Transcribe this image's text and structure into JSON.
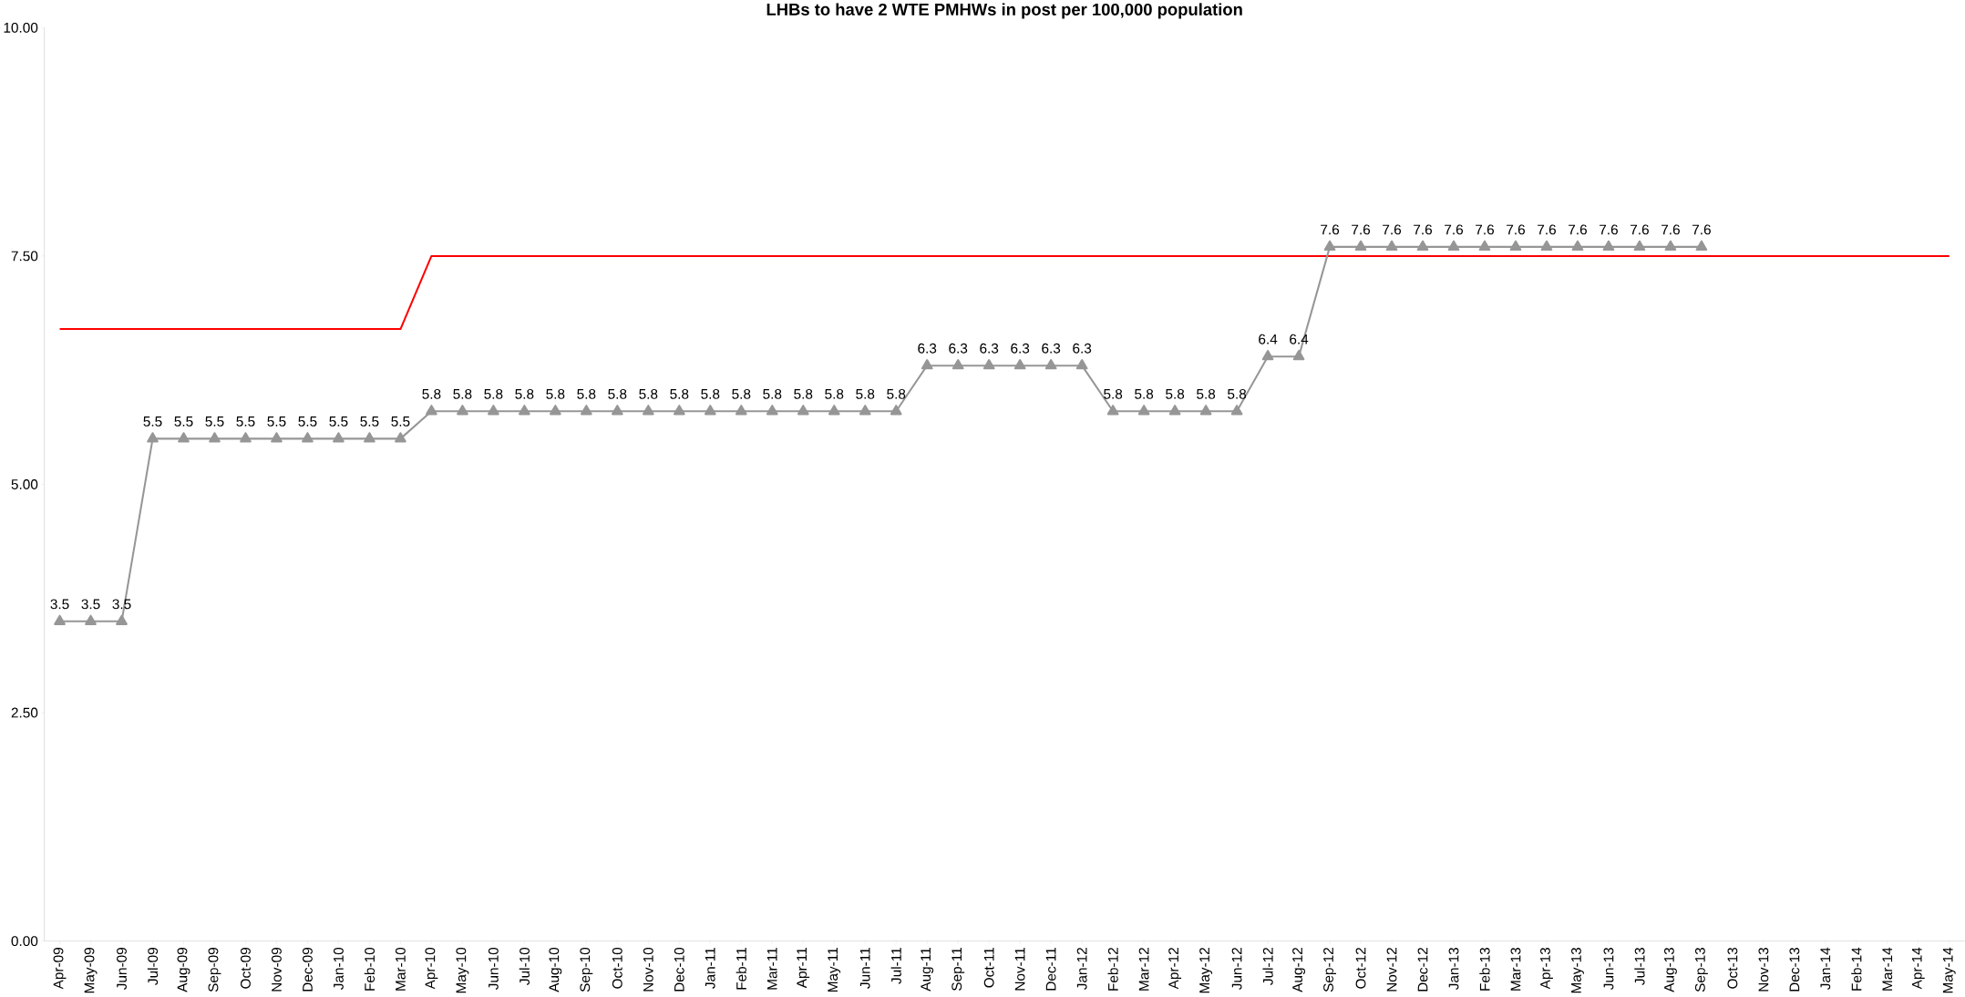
{
  "chart_data": {
    "type": "line",
    "title": "LHBs to have 2 WTE PMHWs in post per 100,000 population",
    "categories": [
      "Apr-09",
      "May-09",
      "Jun-09",
      "Jul-09",
      "Aug-09",
      "Sep-09",
      "Oct-09",
      "Nov-09",
      "Dec-09",
      "Jan-10",
      "Feb-10",
      "Mar-10",
      "Apr-10",
      "May-10",
      "Jun-10",
      "Jul-10",
      "Aug-10",
      "Sep-10",
      "Oct-10",
      "Nov-10",
      "Dec-10",
      "Jan-11",
      "Feb-11",
      "Mar-11",
      "Apr-11",
      "May-11",
      "Jun-11",
      "Jul-11",
      "Aug-11",
      "Sep-11",
      "Oct-11",
      "Nov-11",
      "Dec-11",
      "Jan-12",
      "Feb-12",
      "Mar-12",
      "Apr-12",
      "May-12",
      "Jun-12",
      "Jul-12",
      "Aug-12",
      "Sep-12",
      "Oct-12",
      "Nov-12",
      "Dec-12",
      "Jan-13",
      "Feb-13",
      "Mar-13",
      "Apr-13",
      "May-13",
      "Jun-13",
      "Jul-13",
      "Aug-13",
      "Sep-13",
      "Oct-13",
      "Nov-13",
      "Dec-13",
      "Jan-14",
      "Feb-14",
      "Mar-14",
      "Apr-14",
      "May-14"
    ],
    "series": [
      {
        "color": "#ff0000",
        "marker": "none",
        "values": [
          6.7,
          6.7,
          6.7,
          6.7,
          6.7,
          6.7,
          6.7,
          6.7,
          6.7,
          6.7,
          6.7,
          6.7,
          7.5,
          7.5,
          7.5,
          7.5,
          7.5,
          7.5,
          7.5,
          7.5,
          7.5,
          7.5,
          7.5,
          7.5,
          7.5,
          7.5,
          7.5,
          7.5,
          7.5,
          7.5,
          7.5,
          7.5,
          7.5,
          7.5,
          7.5,
          7.5,
          7.5,
          7.5,
          7.5,
          7.5,
          7.5,
          7.5,
          7.5,
          7.5,
          7.5,
          7.5,
          7.5,
          7.5,
          7.5,
          7.5,
          7.5,
          7.5,
          7.5,
          7.5,
          7.5,
          7.5,
          7.5,
          7.5,
          7.5,
          7.5,
          7.5,
          7.5
        ]
      },
      {
        "color": "#969696",
        "marker": "triangle",
        "values": [
          3.5,
          3.5,
          3.5,
          5.5,
          5.5,
          5.5,
          5.5,
          5.5,
          5.5,
          5.5,
          5.5,
          5.5,
          5.8,
          5.8,
          5.8,
          5.8,
          5.8,
          5.8,
          5.8,
          5.8,
          5.8,
          5.8,
          5.8,
          5.8,
          5.8,
          5.8,
          5.8,
          5.8,
          6.3,
          6.3,
          6.3,
          6.3,
          6.3,
          6.3,
          5.8,
          5.8,
          5.8,
          5.8,
          5.8,
          6.4,
          6.4,
          7.6,
          7.6,
          7.6,
          7.6,
          7.6,
          7.6,
          7.6,
          7.6,
          7.6,
          7.6,
          7.6,
          7.6,
          7.6,
          null,
          null,
          null,
          null,
          null,
          null,
          null,
          null
        ],
        "value_labels": [
          "3.5",
          "3.5",
          "3.5",
          "5.5",
          "5.5",
          "5.5",
          "5.5",
          "5.5",
          "5.5",
          "5.5",
          "5.5",
          "5.5",
          "5.8",
          "5.8",
          "5.8",
          "5.8",
          "5.8",
          "5.8",
          "5.8",
          "5.8",
          "5.8",
          "5.8",
          "5.8",
          "5.8",
          "5.8",
          "5.8",
          "5.8",
          "5.8",
          "6.3",
          "6.3",
          "6.3",
          "6.3",
          "6.3",
          "6.3",
          "5.8",
          "5.8",
          "5.8",
          "5.8",
          "5.8",
          "6.4",
          "6.4",
          "7.6",
          "7.6",
          "7.6",
          "7.6",
          "7.6",
          "7.6",
          "7.6",
          "7.6",
          "7.6",
          "7.6",
          "7.6",
          "7.6",
          "7.6",
          null,
          null,
          null,
          null,
          null,
          null,
          null,
          null
        ]
      }
    ],
    "ylim": [
      0,
      10
    ],
    "yticks": [
      {
        "value": 0,
        "label": "0.00"
      },
      {
        "value": 2.5,
        "label": "2.50"
      },
      {
        "value": 5,
        "label": "5.00"
      },
      {
        "value": 7.5,
        "label": "7.50"
      },
      {
        "value": 10,
        "label": "10.00"
      }
    ],
    "grid": false
  }
}
